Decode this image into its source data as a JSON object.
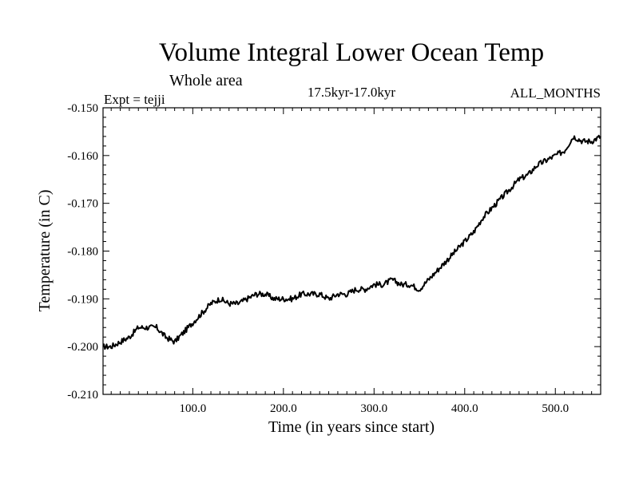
{
  "chart_data": {
    "type": "line",
    "title": "Volume Integral Lower Ocean Temp",
    "subtitle": "Whole area",
    "experiment": "Expt = tejji",
    "period": "17.5kyr-17.0kyr",
    "season": "ALL_MONTHS",
    "xlabel": "Time (in years since start)",
    "ylabel": "Temperature (in C)",
    "xlim": [
      1,
      550
    ],
    "ylim": [
      -0.21,
      -0.15
    ],
    "xticks": [
      100,
      200,
      300,
      400,
      500
    ],
    "xtick_labels": [
      "100.0",
      "200.0",
      "300.0",
      "400.0",
      "500.0"
    ],
    "yticks": [
      -0.15,
      -0.16,
      -0.17,
      -0.18,
      -0.19,
      -0.2,
      -0.21
    ],
    "ytick_labels": [
      "-0.150",
      "-0.160",
      "-0.170",
      "-0.180",
      "-0.190",
      "-0.200",
      "-0.210"
    ],
    "grid": false,
    "series": [
      {
        "name": "Volume Integral Lower Ocean Temp",
        "x": [
          1,
          10,
          20,
          30,
          40,
          50,
          60,
          70,
          80,
          90,
          100,
          110,
          120,
          130,
          140,
          150,
          160,
          170,
          180,
          190,
          200,
          210,
          220,
          230,
          240,
          250,
          260,
          270,
          280,
          290,
          300,
          310,
          320,
          330,
          340,
          350,
          360,
          370,
          380,
          390,
          400,
          410,
          420,
          430,
          440,
          450,
          460,
          470,
          480,
          490,
          500,
          510,
          520,
          530,
          540,
          550
        ],
        "values": [
          -0.2,
          -0.2,
          -0.199,
          -0.198,
          -0.196,
          -0.196,
          -0.196,
          -0.198,
          -0.199,
          -0.197,
          -0.195,
          -0.193,
          -0.191,
          -0.19,
          -0.191,
          -0.191,
          -0.19,
          -0.189,
          -0.189,
          -0.19,
          -0.19,
          -0.19,
          -0.189,
          -0.189,
          -0.189,
          -0.19,
          -0.189,
          -0.189,
          -0.188,
          -0.188,
          -0.187,
          -0.187,
          -0.186,
          -0.187,
          -0.187,
          -0.188,
          -0.186,
          -0.184,
          -0.182,
          -0.18,
          -0.178,
          -0.176,
          -0.173,
          -0.171,
          -0.169,
          -0.167,
          -0.165,
          -0.164,
          -0.162,
          -0.161,
          -0.16,
          -0.159,
          -0.156,
          -0.157,
          -0.157,
          -0.156
        ]
      }
    ]
  }
}
